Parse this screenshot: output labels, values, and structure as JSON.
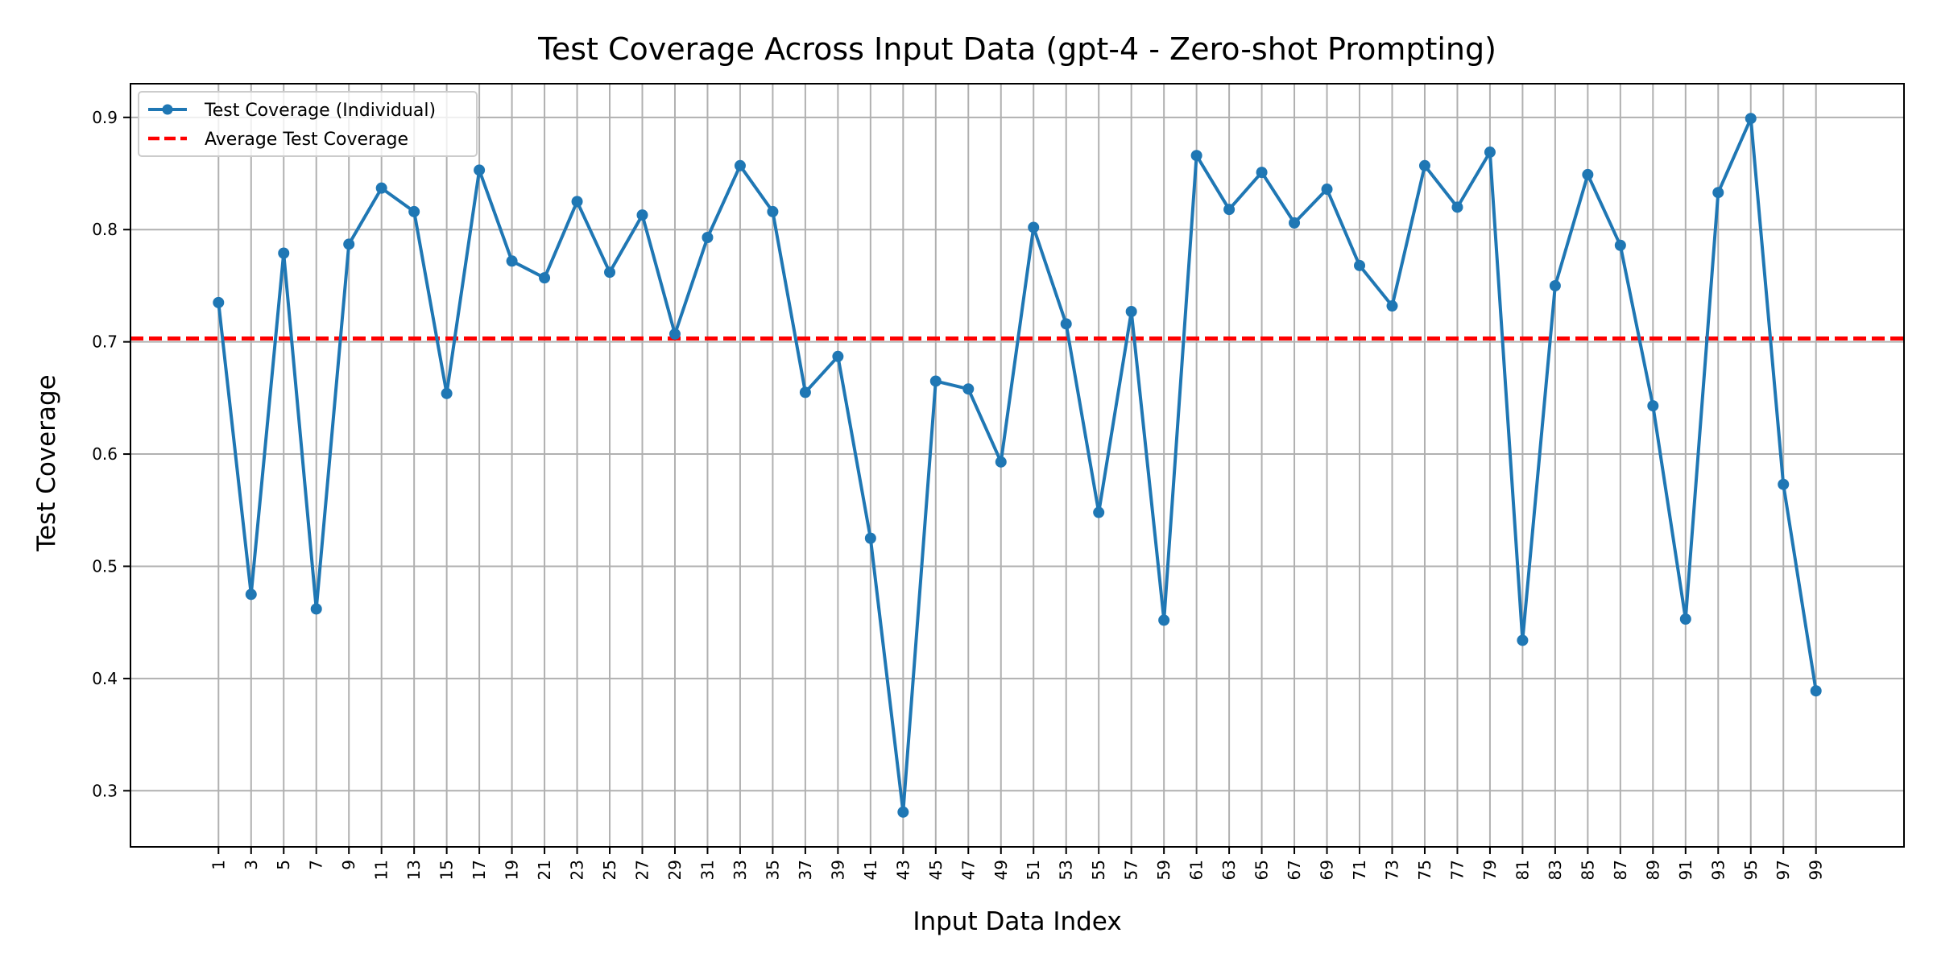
{
  "chart_data": {
    "type": "line",
    "title": "Test Coverage Across Input Data (gpt-4 - Zero-shot Prompting)",
    "xlabel": "Input Data Index",
    "ylabel": "Test Coverage",
    "x": [
      1,
      3,
      5,
      7,
      9,
      11,
      13,
      15,
      17,
      19,
      21,
      23,
      25,
      27,
      29,
      31,
      33,
      35,
      37,
      39,
      41,
      43,
      45,
      47,
      49,
      51,
      53,
      55,
      57,
      59,
      61,
      63,
      65,
      67,
      69,
      71,
      73,
      75,
      77,
      79,
      81,
      83,
      85,
      87,
      89,
      91,
      93,
      95,
      97,
      99
    ],
    "xticks": [
      "1",
      "3",
      "5",
      "7",
      "9",
      "11",
      "13",
      "15",
      "17",
      "19",
      "21",
      "23",
      "25",
      "27",
      "29",
      "31",
      "33",
      "35",
      "37",
      "39",
      "41",
      "43",
      "45",
      "47",
      "49",
      "51",
      "53",
      "55",
      "57",
      "59",
      "61",
      "63",
      "65",
      "67",
      "69",
      "71",
      "73",
      "75",
      "77",
      "79",
      "81",
      "83",
      "85",
      "87",
      "89",
      "91",
      "93",
      "95",
      "97",
      "99"
    ],
    "yticks": [
      "0.3",
      "0.4",
      "0.5",
      "0.6",
      "0.7",
      "0.8",
      "0.9"
    ],
    "xlim": [
      -4.4,
      104.4
    ],
    "ylim": [
      0.25,
      0.93
    ],
    "grid": true,
    "legend_position": "top-left",
    "series": [
      {
        "name": "Test Coverage (Individual)",
        "color": "#1f77b4",
        "style": "solid-with-markers",
        "values": [
          0.735,
          0.475,
          0.779,
          0.462,
          0.787,
          0.837,
          0.816,
          0.654,
          0.853,
          0.772,
          0.757,
          0.825,
          0.762,
          0.813,
          0.707,
          0.793,
          0.857,
          0.816,
          0.655,
          0.687,
          0.525,
          0.281,
          0.665,
          0.658,
          0.593,
          0.802,
          0.716,
          0.548,
          0.727,
          0.452,
          0.866,
          0.818,
          0.851,
          0.806,
          0.836,
          0.768,
          0.732,
          0.857,
          0.82,
          0.869,
          0.434,
          0.75,
          0.849,
          0.786,
          0.643,
          0.453,
          0.833,
          0.899,
          0.573,
          0.389
        ]
      },
      {
        "name": "Average Test Coverage",
        "color": "#ff0000",
        "style": "dashed",
        "value": 0.703
      }
    ]
  }
}
